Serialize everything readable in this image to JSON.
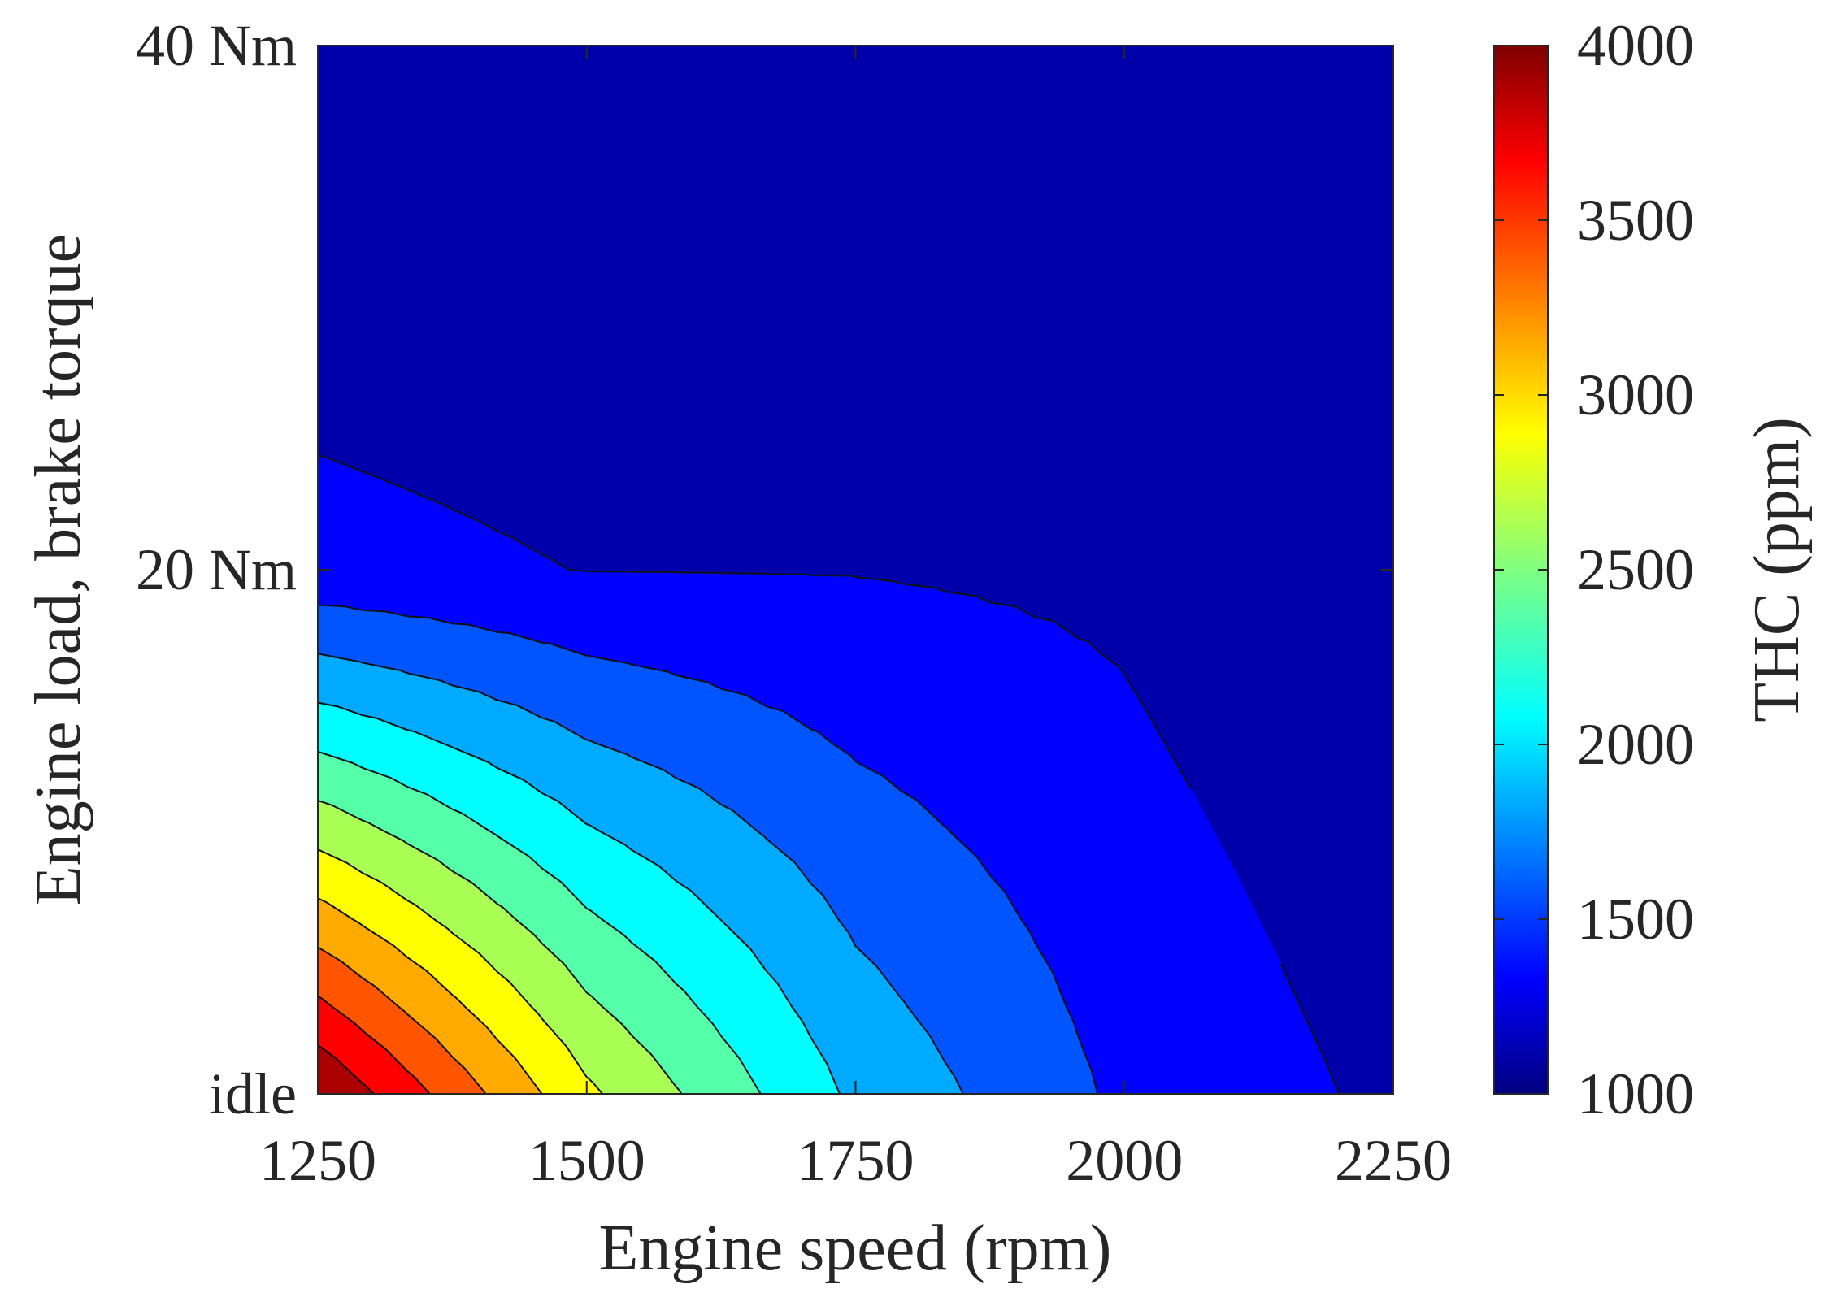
{
  "chart_data": {
    "type": "heatmap",
    "subtype": "filled-contour",
    "xlabel": "Engine speed (rpm)",
    "ylabel": "Engine load, brake torque",
    "colorbar_label": "THC (ppm)",
    "xlim": [
      1250,
      2250
    ],
    "ylim": [
      0,
      40
    ],
    "x_ticks": [
      {
        "value": 1250,
        "label": "1250"
      },
      {
        "value": 1500,
        "label": "1500"
      },
      {
        "value": 1750,
        "label": "1750"
      },
      {
        "value": 2000,
        "label": "2000"
      },
      {
        "value": 2250,
        "label": "2250"
      }
    ],
    "y_ticks": [
      {
        "value": 0,
        "label": "idle"
      },
      {
        "value": 20,
        "label": "20 Nm"
      },
      {
        "value": 40,
        "label": "40 Nm"
      }
    ],
    "colorbar": {
      "range": [
        1000,
        4000
      ],
      "colormap": "jet",
      "ticks": [
        1000,
        1500,
        2000,
        2500,
        3000,
        3500,
        4000
      ],
      "tick_labels": [
        "1000",
        "1500",
        "2000",
        "2500",
        "3000",
        "3500",
        "4000"
      ]
    },
    "contour_levels": [
      1000,
      1250,
      1500,
      1750,
      2000,
      2250,
      2500,
      2750,
      3000,
      3250,
      3500,
      3750,
      4000
    ],
    "x": [
      1250,
      1500,
      1750,
      2000,
      2250
    ],
    "y": [
      0,
      20,
      40
    ],
    "z": [
      [
        4000,
        2800,
        1950,
        1450,
        1200
      ],
      [
        1320,
        1245,
        1240,
        1200,
        1000
      ],
      [
        1000,
        1000,
        1000,
        1000,
        1000
      ]
    ]
  }
}
